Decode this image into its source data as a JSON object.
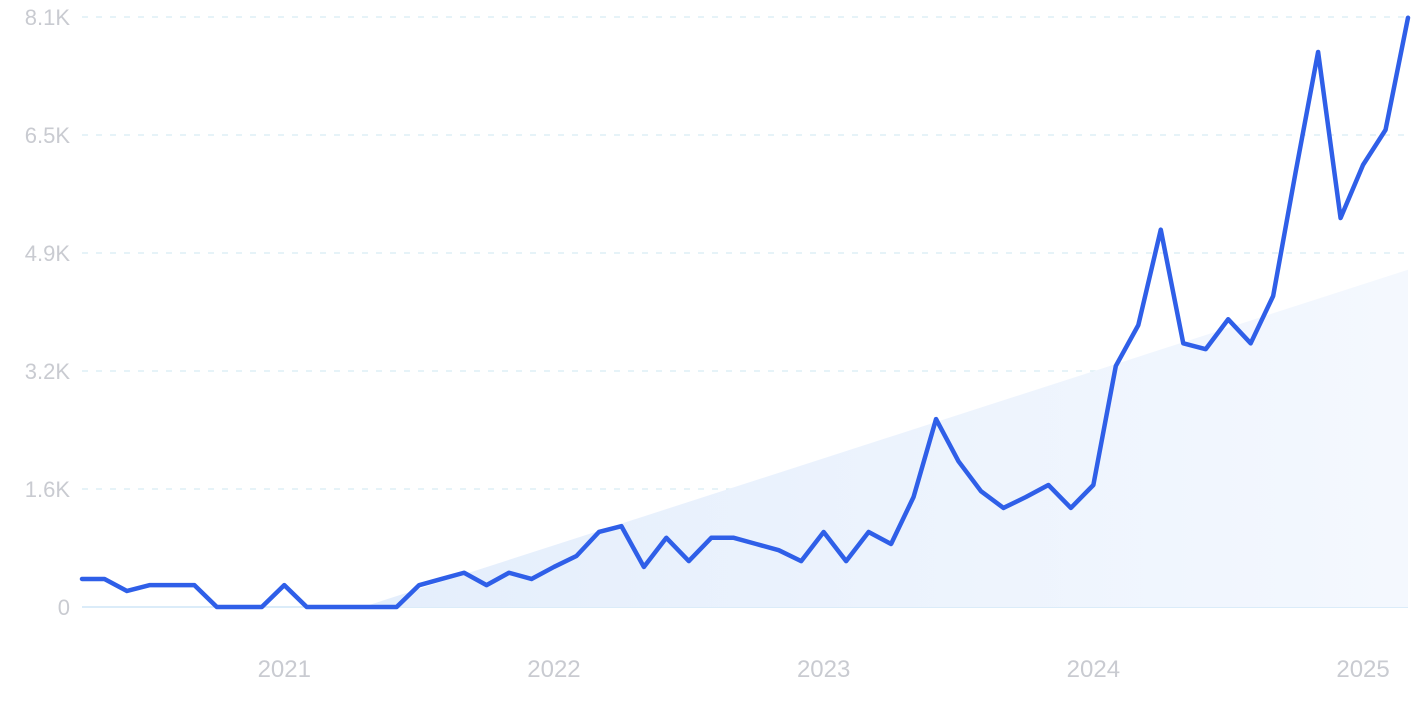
{
  "chart_data": {
    "type": "line",
    "title": "",
    "xlabel": "",
    "ylabel": "",
    "ylim": [
      0,
      8100
    ],
    "grid": true,
    "y_ticks": [
      {
        "value": 0,
        "label": "0"
      },
      {
        "value": 1620,
        "label": "1.6K"
      },
      {
        "value": 3240,
        "label": "3.2K"
      },
      {
        "value": 4860,
        "label": "4.9K"
      },
      {
        "value": 6480,
        "label": "6.5K"
      },
      {
        "value": 8100,
        "label": "8.1K"
      }
    ],
    "x_ticks": [
      {
        "month_index": 9,
        "label": "2021"
      },
      {
        "month_index": 21,
        "label": "2022"
      },
      {
        "month_index": 33,
        "label": "2023"
      },
      {
        "month_index": 45,
        "label": "2024"
      },
      {
        "month_index": 57,
        "label": "2025"
      }
    ],
    "x_range": [
      "2020-04",
      "2025-03"
    ],
    "series": [
      {
        "values": [
          385,
          385,
          220,
          300,
          300,
          300,
          0,
          0,
          0,
          300,
          0,
          0,
          0,
          0,
          0,
          300,
          385,
          470,
          300,
          470,
          385,
          550,
          700,
          1030,
          1110,
          550,
          950,
          630,
          950,
          950,
          865,
          780,
          630,
          1030,
          630,
          1030,
          865,
          1510,
          2580,
          2000,
          1590,
          1360,
          1510,
          1675,
          1360,
          1675,
          3310,
          3870,
          5180,
          3620,
          3540,
          3950,
          3620,
          4270,
          5970,
          7620,
          5340,
          6070,
          6550,
          8090
        ]
      }
    ],
    "trend": {
      "start_month_index": 12.5,
      "start_value": 0,
      "end_value": 4630
    },
    "colors": {
      "line": "#2f5fe8",
      "trend_fill": "#e8f1fc",
      "grid": "#d6ecf3",
      "baseline": "#cfe6f7",
      "tick_label": "#c9cbd1"
    }
  }
}
